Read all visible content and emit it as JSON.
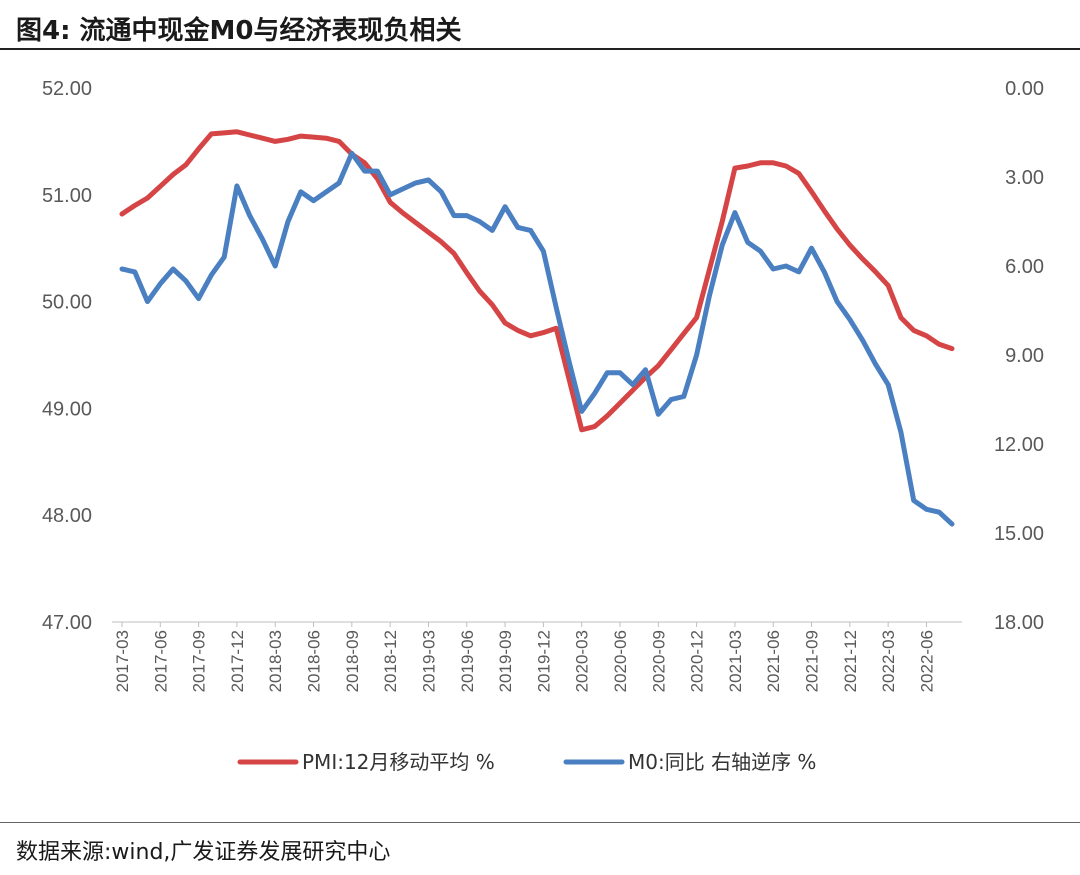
{
  "header": {
    "title": "图4:  流通中现金M0与经济表现负相关"
  },
  "footer": {
    "source": "数据来源:wind,广发证券发展研究中心"
  },
  "chart_data": {
    "type": "line",
    "title": "图4:  流通中现金M0与经济表现负相关",
    "x": [
      "2017-03",
      "2017-04",
      "2017-05",
      "2017-06",
      "2017-07",
      "2017-08",
      "2017-09",
      "2017-10",
      "2017-11",
      "2017-12",
      "2018-01",
      "2018-02",
      "2018-03",
      "2018-04",
      "2018-05",
      "2018-06",
      "2018-07",
      "2018-08",
      "2018-09",
      "2018-10",
      "2018-11",
      "2018-12",
      "2019-01",
      "2019-02",
      "2019-03",
      "2019-04",
      "2019-05",
      "2019-06",
      "2019-07",
      "2019-08",
      "2019-09",
      "2019-10",
      "2019-11",
      "2019-12",
      "2020-01",
      "2020-02",
      "2020-03",
      "2020-04",
      "2020-05",
      "2020-06",
      "2020-07",
      "2020-08",
      "2020-09",
      "2020-10",
      "2020-11",
      "2020-12",
      "2021-01",
      "2021-02",
      "2021-03",
      "2021-04",
      "2021-05",
      "2021-06",
      "2021-07",
      "2021-08",
      "2021-09",
      "2021-10",
      "2021-11",
      "2021-12",
      "2022-01",
      "2022-02",
      "2022-03",
      "2022-04",
      "2022-05",
      "2022-06",
      "2022-07",
      "2022-08"
    ],
    "x_tick_labels": [
      "2017-03",
      "2017-06",
      "2017-09",
      "2017-12",
      "2018-03",
      "2018-06",
      "2018-09",
      "2018-12",
      "2019-03",
      "2019-06",
      "2019-09",
      "2019-12",
      "2020-03",
      "2020-06",
      "2020-09",
      "2020-12",
      "2021-03",
      "2021-06",
      "2021-09",
      "2021-12",
      "2022-03",
      "2022-06"
    ],
    "y_left": {
      "lim": [
        47,
        52
      ],
      "ticks": [
        "52.00",
        "51.00",
        "50.00",
        "49.00",
        "48.00",
        "47.00"
      ]
    },
    "y_right": {
      "lim": [
        0,
        18
      ],
      "inverted": true,
      "ticks": [
        "0.00",
        "3.00",
        "6.00",
        "9.00",
        "12.00",
        "15.00",
        "18.00"
      ]
    },
    "grid": false,
    "legend_position": "bottom-center",
    "series": [
      {
        "name": "PMI:12月移动平均 %",
        "axis": "left",
        "color": "#d64545",
        "values": [
          50.82,
          50.9,
          50.97,
          51.08,
          51.19,
          51.28,
          51.43,
          51.57,
          51.58,
          51.59,
          51.56,
          51.53,
          51.5,
          51.52,
          51.55,
          51.54,
          51.53,
          51.5,
          51.38,
          51.3,
          51.15,
          50.93,
          50.83,
          50.74,
          50.65,
          50.56,
          50.45,
          50.27,
          50.1,
          49.97,
          49.8,
          49.73,
          49.68,
          49.71,
          49.75,
          49.28,
          48.8,
          48.83,
          48.93,
          49.05,
          49.17,
          49.29,
          49.4,
          49.55,
          49.7,
          49.85,
          50.3,
          50.75,
          51.25,
          51.27,
          51.3,
          51.3,
          51.27,
          51.2,
          51.03,
          50.85,
          50.68,
          50.53,
          50.4,
          50.28,
          50.15,
          49.85,
          49.73,
          49.68,
          49.6,
          49.56
        ]
      },
      {
        "name": "M0:同比 右轴逆序 %",
        "axis": "right",
        "color": "#4a7fc1",
        "values": [
          6.1,
          6.2,
          7.2,
          6.6,
          6.1,
          6.5,
          7.1,
          6.3,
          5.7,
          3.3,
          4.3,
          5.1,
          6.0,
          4.5,
          3.5,
          3.8,
          3.5,
          3.2,
          2.2,
          2.8,
          2.8,
          3.6,
          3.4,
          3.2,
          3.1,
          3.5,
          4.3,
          4.3,
          4.5,
          4.8,
          4.0,
          4.7,
          4.8,
          5.5,
          7.4,
          9.2,
          10.9,
          10.3,
          9.6,
          9.6,
          10.0,
          9.5,
          11.0,
          10.5,
          10.4,
          9.0,
          7.0,
          5.3,
          4.2,
          5.2,
          5.5,
          6.1,
          6.0,
          6.2,
          5.4,
          6.2,
          7.2,
          7.8,
          8.5,
          9.3,
          10.0,
          11.6,
          13.9,
          14.2,
          14.3,
          14.7
        ]
      }
    ]
  }
}
